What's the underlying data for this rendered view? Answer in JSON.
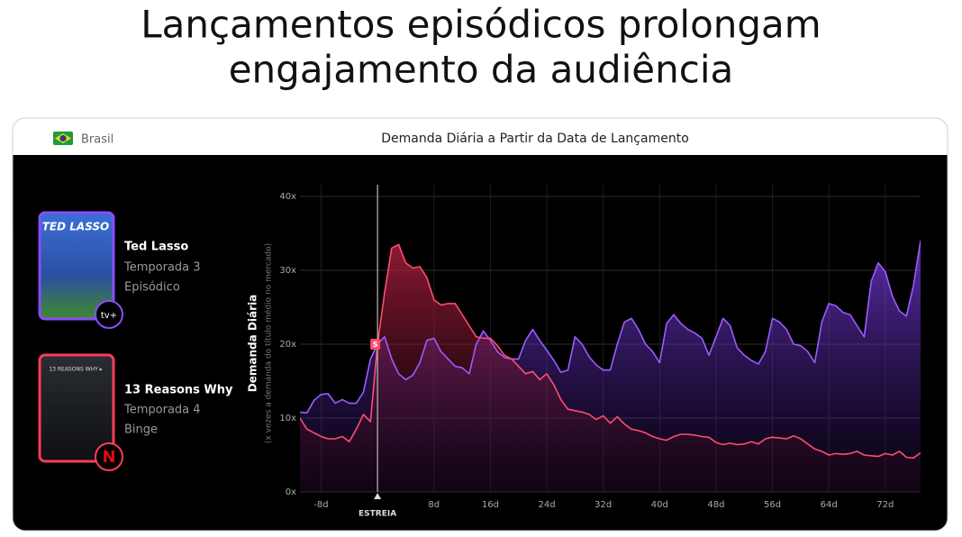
{
  "headline": [
    "Lançamentos episódicos prolongam",
    "engajamento da audiência"
  ],
  "region": "Brasil",
  "chart_data": {
    "type": "area",
    "title": "Demanda Diária a Partir da Data de Lançamento",
    "ylabel": "Demanda Diária",
    "ylabel_note": "(x vezes a demanda do título médio no mercado)",
    "marker_label": "S",
    "x": [
      -11,
      -10,
      -9,
      -8,
      -7,
      -6,
      -5,
      -4,
      -3,
      -2,
      -1,
      0,
      1,
      2,
      3,
      4,
      5,
      6,
      7,
      8,
      9,
      10,
      11,
      12,
      13,
      14,
      15,
      16,
      17,
      18,
      19,
      20,
      21,
      22,
      23,
      24,
      25,
      26,
      27,
      28,
      29,
      30,
      31,
      32,
      33,
      34,
      35,
      36,
      37,
      38,
      39,
      40,
      41,
      42,
      43,
      44,
      45,
      46,
      47,
      48,
      49,
      50,
      51,
      52,
      53,
      54,
      55,
      56,
      57,
      58,
      59,
      60,
      61,
      62,
      63,
      64,
      65,
      66,
      67,
      68,
      69,
      70,
      71,
      72,
      73,
      74,
      75,
      76,
      77
    ],
    "xlim": [
      -11,
      77
    ],
    "xticks": [
      {
        "value": -8,
        "label": "-8d"
      },
      {
        "value": 0,
        "label": "ESTREIA"
      },
      {
        "value": 8,
        "label": "8d"
      },
      {
        "value": 16,
        "label": "16d"
      },
      {
        "value": 24,
        "label": "24d"
      },
      {
        "value": 32,
        "label": "32d"
      },
      {
        "value": 40,
        "label": "40d"
      },
      {
        "value": 48,
        "label": "48d"
      },
      {
        "value": 56,
        "label": "56d"
      },
      {
        "value": 64,
        "label": "64d"
      },
      {
        "value": 72,
        "label": "72d"
      }
    ],
    "ylim": [
      0,
      40
    ],
    "yticks": [
      {
        "value": 0,
        "label": "0x"
      },
      {
        "value": 10,
        "label": "10x"
      },
      {
        "value": 20,
        "label": "20x"
      },
      {
        "value": 30,
        "label": "30x"
      },
      {
        "value": 40,
        "label": "40x"
      }
    ],
    "grid": true,
    "series": [
      {
        "name": "Ted Lasso",
        "season": "Temporada 3",
        "release": "Episódico",
        "poster_text": "TED LASSO",
        "platform": "tv+",
        "color": "#9b5cff",
        "values": [
          10.8,
          10.7,
          12.4,
          13.2,
          13.3,
          12,
          12.5,
          12,
          12,
          13.5,
          18,
          20,
          21,
          18,
          16,
          15.2,
          15.8,
          17.5,
          20.5,
          20.8,
          19,
          18,
          17,
          16.8,
          16,
          20,
          21.8,
          20.5,
          19,
          18.2,
          18,
          18,
          20.5,
          22,
          20.5,
          19.2,
          17.8,
          16.2,
          16.5,
          21,
          20,
          18.3,
          17.2,
          16.5,
          16.5,
          20,
          23,
          23.5,
          22,
          20,
          19,
          17.5,
          22.8,
          24,
          22.8,
          22,
          21.5,
          20.8,
          18.5,
          21,
          23.5,
          22.5,
          19.5,
          18.5,
          17.8,
          17.3,
          19,
          23.5,
          23,
          22,
          20,
          19.8,
          19,
          17.5,
          23,
          25.5,
          25.2,
          24.3,
          24,
          22.5,
          21,
          28.5,
          31,
          29.8,
          26.5,
          24.5,
          23.8,
          28,
          34
        ]
      },
      {
        "name": "13 Reasons Why",
        "season": "Temporada 4",
        "release": "Binge",
        "poster_text": "13 REASONS WHY ▸",
        "platform": "N",
        "color": "#ff4d6d",
        "values": [
          10,
          8.5,
          8,
          7.5,
          7.2,
          7.2,
          7.5,
          6.8,
          8.5,
          10.5,
          9.5,
          20,
          27,
          33,
          33.5,
          31,
          30.3,
          30.5,
          29,
          26,
          25.3,
          25.5,
          25.5,
          24,
          22.5,
          21,
          20.8,
          20.8,
          19.8,
          18.5,
          18,
          17,
          16,
          16.3,
          15.2,
          16,
          14.5,
          12.5,
          11.2,
          11,
          10.8,
          10.5,
          9.8,
          10.3,
          9.3,
          10.2,
          9.2,
          8.5,
          8.3,
          8,
          7.5,
          7.2,
          7,
          7.5,
          7.8,
          7.8,
          7.7,
          7.5,
          7.4,
          6.7,
          6.4,
          6.6,
          6.4,
          6.5,
          6.8,
          6.5,
          7.2,
          7.4,
          7.3,
          7.2,
          7.6,
          7.2,
          6.5,
          5.8,
          5.5,
          5,
          5.2,
          5.1,
          5.2,
          5.5,
          5,
          4.9,
          4.8,
          5.2,
          5,
          5.5,
          4.7,
          4.6,
          5.3
        ]
      }
    ]
  }
}
